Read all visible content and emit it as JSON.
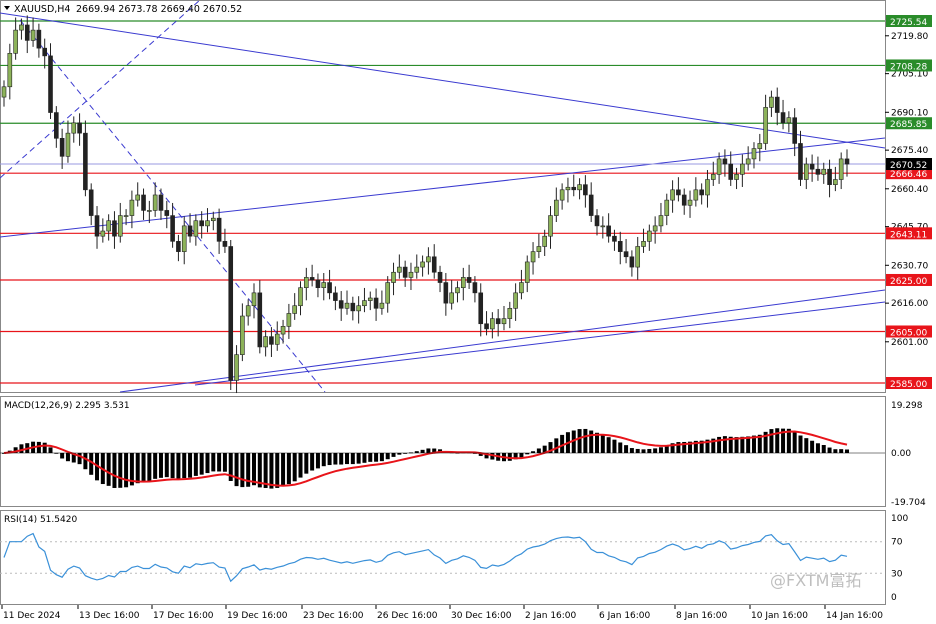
{
  "header": {
    "symbol": "XAUUSD,H4",
    "ohlc": "2669.94 2673.78 2669.40 2670.52",
    "menu_arrow": "triangle-down-icon"
  },
  "colors": {
    "bull": "#8db35a",
    "bear": "#222222",
    "support_line": "#e8141a",
    "resistance_line": "#2a8c2a",
    "trend_line": "#3a3ad0",
    "price_line": "#9a9ae0",
    "macd_signal": "#e8141a",
    "macd_hist": "#000000",
    "rsi_line": "#3a90d8"
  },
  "chart_data": [
    {
      "type": "candlestick",
      "name": "price",
      "ylim": [
        2582,
        2732
      ],
      "y_ticks": [
        "2719.80",
        "2705.10",
        "2690.10",
        "2675.40",
        "2660.40",
        "2645.70",
        "2630.70",
        "2616.00",
        "2601.00"
      ],
      "current_price": "2670.52",
      "horizontal_levels": [
        {
          "value": 2725.54,
          "label": "2725.54",
          "kind": "resistance"
        },
        {
          "value": 2708.28,
          "label": "2708.28",
          "kind": "resistance"
        },
        {
          "value": 2685.85,
          "label": "2685.85",
          "kind": "resistance"
        },
        {
          "value": 2666.46,
          "label": "2666.46",
          "kind": "support"
        },
        {
          "value": 2643.11,
          "label": "2643.11",
          "kind": "support"
        },
        {
          "value": 2625.0,
          "label": "2625.00",
          "kind": "support"
        },
        {
          "value": 2605.0,
          "label": "2605.00",
          "kind": "support"
        },
        {
          "value": 2585.0,
          "label": "2585.00",
          "kind": "support"
        }
      ],
      "closes": [
        2700,
        2713,
        2722,
        2724,
        2718,
        2722,
        2715,
        2712,
        2690,
        2680,
        2673,
        2682,
        2686,
        2682,
        2660,
        2650,
        2642,
        2644,
        2648,
        2642,
        2650,
        2650,
        2656,
        2658,
        2652,
        2652,
        2658,
        2652,
        2650,
        2640,
        2636,
        2646,
        2642,
        2648,
        2646,
        2648,
        2649,
        2640,
        2638,
        2586,
        2596,
        2611,
        2615,
        2620,
        2599,
        2603,
        2600,
        2604,
        2607,
        2612,
        2615,
        2622,
        2626,
        2625,
        2622,
        2624,
        2620,
        2617,
        2614,
        2616,
        2613,
        2615,
        2617,
        2618,
        2614,
        2616,
        2624,
        2628,
        2630,
        2626,
        2628,
        2630,
        2632,
        2634,
        2628,
        2624,
        2616,
        2620,
        2622,
        2626,
        2624,
        2620,
        2608,
        2606,
        2610,
        2608,
        2610,
        2614,
        2620,
        2624,
        2632,
        2636,
        2638,
        2642,
        2650,
        2656,
        2660,
        2661,
        2660,
        2662,
        2658,
        2650,
        2646,
        2646,
        2642,
        2640,
        2636,
        2634,
        2630,
        2638,
        2640,
        2644,
        2646,
        2650,
        2656,
        2660,
        2658,
        2654,
        2656,
        2660,
        2658,
        2664,
        2666,
        2672,
        2670,
        2664,
        2666,
        2670,
        2672,
        2676,
        2678,
        2692,
        2696,
        2690,
        2686,
        2688,
        2678,
        2664,
        2670,
        2668,
        2666,
        2668,
        2662,
        2664,
        2672,
        2670
      ],
      "labels": [
        "11 Dec 2024",
        "13 Dec 16:00",
        "17 Dec 16:00",
        "19 Dec 16:00",
        "23 Dec 16:00",
        "26 Dec 16:00",
        "30 Dec 16:00",
        "2 Jan 16:00",
        "6 Jan 16:00",
        "8 Jan 16:00",
        "10 Jan 16:00",
        "14 Jan 16:00"
      ]
    },
    {
      "type": "bar",
      "name": "MACD(12,26,9)",
      "label": "MACD(12,26,9) 2.295 3.531",
      "macd": 2.295,
      "signal": 3.531,
      "y_ticks": [
        "19.298",
        "0.00",
        "-19.704"
      ],
      "ylim": [
        -22,
        22
      ]
    },
    {
      "type": "line",
      "name": "RSI(14)",
      "label": "RSI(14) 51.5420",
      "value": 51.542,
      "y_ticks": [
        "100",
        "70",
        "30",
        "0"
      ],
      "ylim": [
        0,
        100
      ]
    }
  ],
  "watermark": {
    "text": "@FXTM富拓"
  }
}
